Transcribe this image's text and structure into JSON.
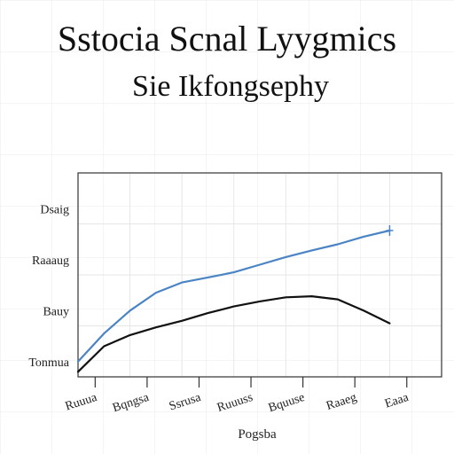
{
  "title": "Sstocia Scnal Lyygmics",
  "subtitle": "Sie Ikfongsephy",
  "colors": {
    "series_1": "#4a84c4",
    "series_2": "#111111",
    "axis": "#333333",
    "grid": "#e6e6e6"
  },
  "chart_data": {
    "type": "line",
    "title": "",
    "xlabel": "Pogsba",
    "ylabel": "",
    "x_tick_labels": [
      "Ruuua",
      "Bqngsa",
      "Ssrusa",
      "Ruuuss",
      "Bquuse",
      "Raaeg",
      "Eaaa"
    ],
    "y_tick_labels": [
      "Tonmua",
      "Bauy",
      "Raaaug",
      "Dsaig"
    ],
    "xlim": [
      0,
      7
    ],
    "ylim": [
      0,
      4
    ],
    "grid": true,
    "series": [
      {
        "x": [
          0,
          0.5,
          1,
          1.5,
          2,
          2.5,
          3,
          3.5,
          4,
          4.5,
          5,
          5.5,
          6
        ],
        "y": [
          0.3,
          0.85,
          1.3,
          1.65,
          1.85,
          1.95,
          2.05,
          2.2,
          2.35,
          2.48,
          2.6,
          2.75,
          2.87
        ]
      },
      {
        "x": [
          0,
          0.5,
          1,
          1.5,
          2,
          2.5,
          3,
          3.5,
          4,
          4.5,
          5,
          5.5,
          6
        ],
        "y": [
          0.1,
          0.6,
          0.82,
          0.97,
          1.1,
          1.25,
          1.38,
          1.48,
          1.56,
          1.58,
          1.52,
          1.3,
          1.05
        ]
      }
    ]
  }
}
